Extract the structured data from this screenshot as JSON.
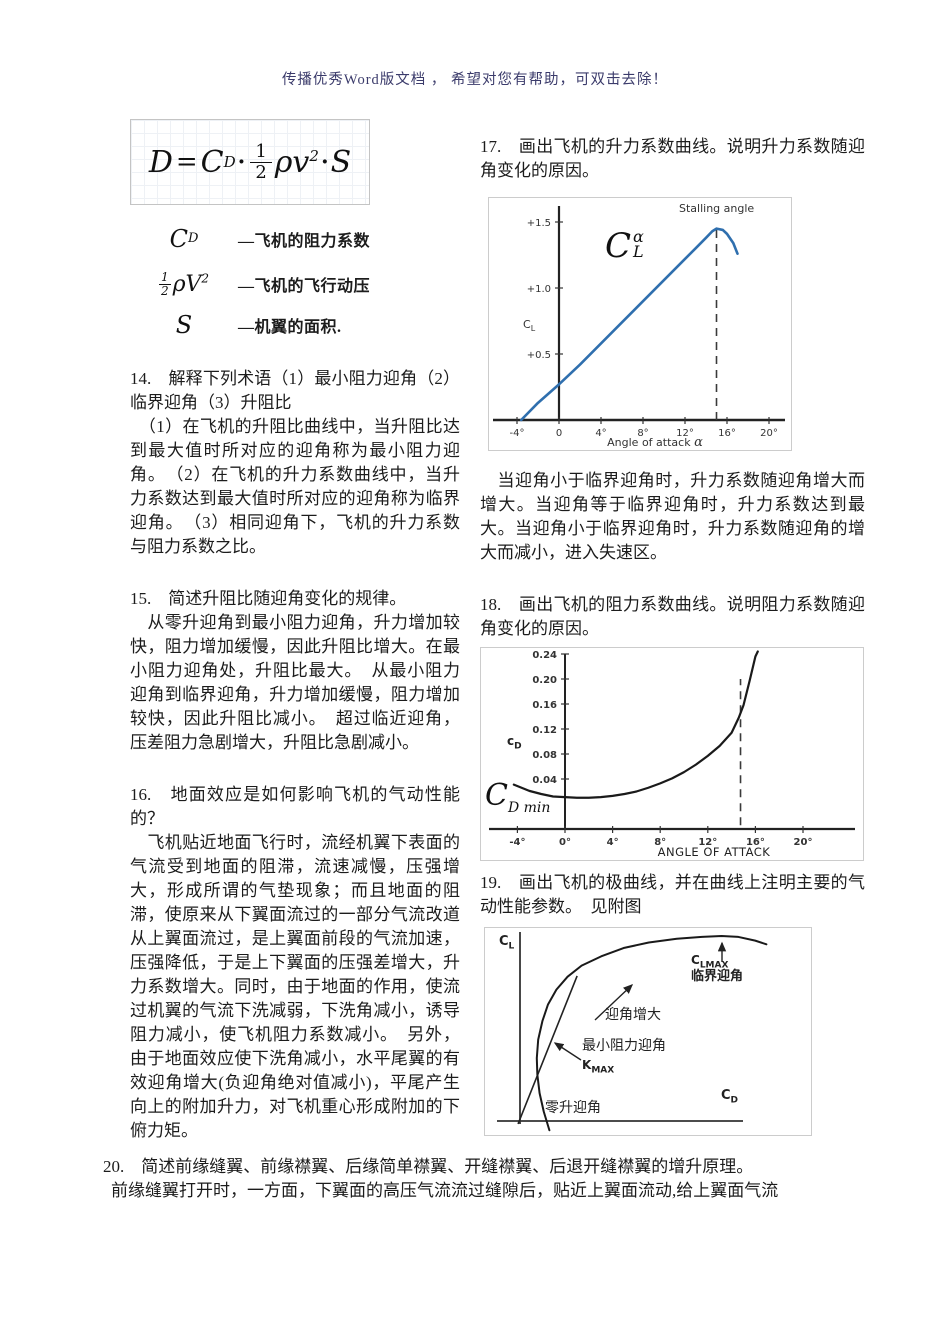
{
  "page": {
    "header_notice": "传播优秀Word版文档 ， 希望对您有帮助，可双击去除！"
  },
  "formula": {
    "d": "D",
    "eq": "=",
    "c": "C",
    "c_sub": "D",
    "dot1": "·",
    "num": "1",
    "den": "2",
    "rhov": "ρv",
    "sup": "2",
    "dot2": "·",
    "s": "S"
  },
  "definitions": {
    "rows": [
      {
        "sym_base": "C",
        "sym_sub": "D",
        "desc": "—飞机的阻力系数"
      },
      {
        "frac_num": "1",
        "frac_den": "2",
        "sym_rest": "ρV",
        "sym_sup": "2",
        "desc": "—飞机的飞行动压"
      },
      {
        "sym_base": "S",
        "desc": "—机翼的面积."
      }
    ]
  },
  "questions": {
    "q14": {
      "title": "14.　解释下列术语（1）最小阻力迎角（2）临界迎角（3）升阻比",
      "body": "　（1）在飞机的升阻比曲线中，当升阻比达到最大值时所对应的迎角称为最小阻力迎角。　（2）在飞机的升力系数曲线中，当升力系数达到最大值时所对应的迎角称为临界迎角。　（3）相同迎角下，飞机的升力系数与阻力系数之比。"
    },
    "q15": {
      "title": "15.　简述升阻比随迎角变化的规律。",
      "body": "　从零升迎角到最小阻力迎角，升力增加较快，阻力增加缓慢，因此升阻比增大。在最小阻力迎角处，升阻比最大。　从最小阻力迎角到临界迎角，升力增加缓慢，阻力增加较快，因此升阻比减小。　超过临近迎角，压差阻力急剧增大，升阻比急剧减小。"
    },
    "q16": {
      "title": "16.　地面效应是如何影响飞机的气动性能的？",
      "body": "　飞机贴近地面飞行时，流经机翼下表面的气流受到地面的阻滞，流速减慢，压强增大，形成所谓的气垫现象；而且地面的阻滞，使原来从下翼面流过的一部分气流改道从上翼面流过，是上翼面前段的气流加速，压强降低，于是上下翼面的压强差增大，升力系数增大。同时，由于地面的作用，使流过机翼的气流下洗减弱，下洗角减小，诱导阻力减小，使飞机阻力系数减小。　另外，由于地面效应使下洗角减小，水平尾翼的有效迎角增大(负迎角绝对值减小)，平尾产生向上的附加升力，对飞机重心形成附加的下俯力矩。"
    },
    "q17": {
      "title": "17.　画出飞机的升力系数曲线。说明升力系数随迎角变化的原因。",
      "answer": "　当迎角小于临界迎角时，升力系数随迎角增大而增大。当迎角等于临界迎角时，升力系数达到最大。当迎角小于临界迎角时，升力系数随迎角的增大而减小，进入失速区。"
    },
    "q18": {
      "title": "18.　画出飞机的阻力系数曲线。说明阻力系数随迎角变化的原因。"
    },
    "q19": {
      "title": "19.　画出飞机的极曲线，并在曲线上注明主要的气动性能参数。　见附图"
    },
    "q20": {
      "title": "20.　简述前缘缝翼、前缘襟翼、后缘简单襟翼、开缝襟翼、后退开缝襟翼的增升原理。",
      "body": "前缘缝翼打开时，一方面，下翼面的高压气流流过缝隙后，贴近上翼面流动,给上翼面气流"
    }
  },
  "chart_data": [
    {
      "id": "lift-coefficient-curve",
      "type": "line",
      "xlabel": "Angle of attack",
      "xlabel_symbol": "α",
      "ylabel_base": "C",
      "ylabel_sub": "L",
      "curve_label_base": "C",
      "curve_label_sup": "α",
      "curve_label_sub": "L",
      "stall_label": "Stalling angle",
      "x_ticks": {
        "values": [
          -4,
          0,
          4,
          8,
          12,
          16,
          20
        ],
        "labels": [
          "-4°",
          "0",
          "4°",
          "8°",
          "12°",
          "16°",
          "20°"
        ]
      },
      "y_ticks": {
        "values": [
          0.5,
          1.0,
          1.5
        ],
        "labels": [
          "+0.5",
          "+1.0",
          "+1.5"
        ]
      },
      "xlim": [
        -6,
        21.5
      ],
      "ylim": [
        0,
        1.65
      ],
      "grid": false,
      "line_color": "#2f6fae",
      "points": [
        [
          -3.6,
          0
        ],
        [
          -2,
          0.13
        ],
        [
          0,
          0.27
        ],
        [
          2,
          0.42
        ],
        [
          4,
          0.58
        ],
        [
          6,
          0.74
        ],
        [
          8,
          0.9
        ],
        [
          10,
          1.06
        ],
        [
          12,
          1.22
        ],
        [
          13,
          1.3
        ],
        [
          14,
          1.38
        ],
        [
          14.6,
          1.43
        ],
        [
          15,
          1.45
        ],
        [
          15.6,
          1.44
        ],
        [
          16,
          1.41
        ],
        [
          16.6,
          1.34
        ],
        [
          17,
          1.26
        ]
      ],
      "dash": {
        "x": 15,
        "y1": 0,
        "y2": 1.45
      }
    },
    {
      "id": "drag-coefficient-curve",
      "type": "line",
      "xlabel": "ANGLE OF ATTACK",
      "ylabel_base": "c",
      "ylabel_sub": "D",
      "min_label_base": "C",
      "min_label_sub": "D min",
      "x_ticks": {
        "values": [
          -4,
          0,
          4,
          8,
          12,
          16,
          20
        ],
        "labels": [
          "-4°",
          "0°",
          "4°",
          "8°",
          "12°",
          "16°",
          "20°"
        ]
      },
      "y_ticks": {
        "values": [
          0.04,
          0.08,
          0.12,
          0.16,
          0.2,
          0.24
        ],
        "labels": [
          "0.04",
          "0.08",
          "0.12",
          "0.16",
          "0.20",
          "0.24"
        ]
      },
      "xlim": [
        -6,
        22
      ],
      "ylim": [
        0,
        0.26
      ],
      "grid": false,
      "line_color": "#1a1a1a",
      "points": [
        [
          -4.3,
          0.031
        ],
        [
          -3,
          0.021
        ],
        [
          -2,
          0.016
        ],
        [
          -1,
          0.012
        ],
        [
          0,
          0.011
        ],
        [
          1,
          0.01
        ],
        [
          2,
          0.01
        ],
        [
          3,
          0.011
        ],
        [
          4,
          0.013
        ],
        [
          5,
          0.016
        ],
        [
          6,
          0.02
        ],
        [
          7,
          0.026
        ],
        [
          8,
          0.033
        ],
        [
          9,
          0.041
        ],
        [
          10,
          0.051
        ],
        [
          11,
          0.063
        ],
        [
          12,
          0.077
        ],
        [
          13,
          0.093
        ],
        [
          14,
          0.114
        ],
        [
          14.6,
          0.138
        ],
        [
          15,
          0.158
        ],
        [
          15.5,
          0.196
        ],
        [
          16,
          0.236
        ],
        [
          16.2,
          0.244
        ]
      ],
      "dash": {
        "x": 14.75,
        "y1": -0.034,
        "y2": 0.2
      }
    },
    {
      "id": "polar-curve",
      "type": "line",
      "xlabel_base": "C",
      "xlabel_sub": "D",
      "ylabel_base": "C",
      "ylabel_sub": "L",
      "clmax_base": "C",
      "clmax_sub": "LMAX",
      "clmax_cjk": "临界迎角",
      "aoa_increase_label": "迎角增大",
      "min_drag_label": "最小阻力迎角",
      "kmax_base": "K",
      "kmax_sub": "MAX",
      "zero_lift_label": "零升迎角",
      "grid": false,
      "line_color": "#1a1a1a",
      "points": [
        [
          0.105,
          -0.05
        ],
        [
          0.085,
          0.05
        ],
        [
          0.07,
          0.15
        ],
        [
          0.062,
          0.25
        ],
        [
          0.06,
          0.34
        ],
        [
          0.065,
          0.44
        ],
        [
          0.08,
          0.54
        ],
        [
          0.1,
          0.63
        ],
        [
          0.13,
          0.71
        ],
        [
          0.17,
          0.78
        ],
        [
          0.22,
          0.84
        ],
        [
          0.29,
          0.89
        ],
        [
          0.37,
          0.935
        ],
        [
          0.46,
          0.965
        ],
        [
          0.56,
          0.985
        ],
        [
          0.65,
          0.995
        ],
        [
          0.72,
          1.0
        ],
        [
          0.78,
          0.995
        ],
        [
          0.84,
          0.975
        ],
        [
          0.88,
          0.955
        ]
      ],
      "tangent": [
        [
          -0.007,
          -0.016
        ],
        [
          0.204,
          0.784
        ]
      ]
    }
  ]
}
